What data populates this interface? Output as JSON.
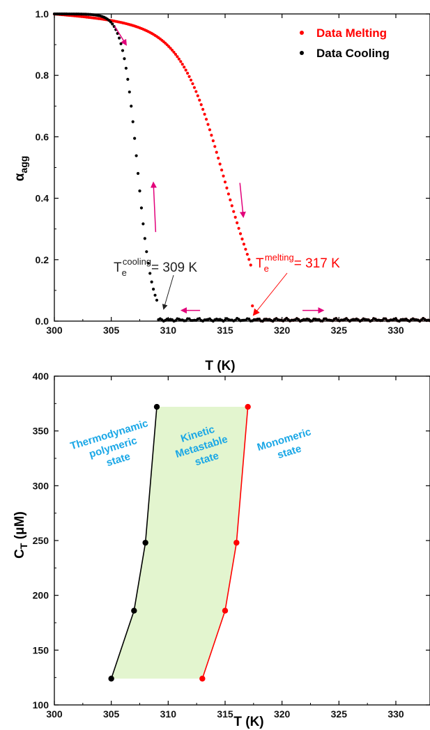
{
  "chart_data": [
    {
      "type": "scatter",
      "xlim": [
        300,
        333
      ],
      "ylim": [
        0,
        1.0
      ],
      "x_ticks": [
        "300",
        "305",
        "310",
        "315",
        "320",
        "325",
        "330"
      ],
      "y_ticks": [
        "0.0",
        "0.2",
        "0.4",
        "0.6",
        "0.8",
        "1.0"
      ],
      "xlabel": "T (K)",
      "ylabel": {
        "main": "α",
        "sub": "agg"
      },
      "legend_position": "top-right",
      "series": [
        {
          "name": "Data Melting",
          "color": "#ff0000",
          "model": "melting",
          "x_start": 300,
          "x_end": 333,
          "step": 0.15,
          "midpoint": 315,
          "width": 7.5,
          "onset": 317.4
        },
        {
          "name": "Data Cooling",
          "color": "#000000",
          "model": "cooling",
          "x_start": 300,
          "x_end": 333,
          "step": 0.15,
          "midpoint": 307.3,
          "width": 2.6,
          "onset": 309.1
        }
      ],
      "annotations": [
        {
          "base": "T",
          "sub": "e",
          "sup": "cooling",
          "value": "= 309 K",
          "color": "#222222",
          "points_to": [
            309.1,
            0.02
          ]
        },
        {
          "base": "T",
          "sub": "e",
          "sup": "melting",
          "value": "= 317 K",
          "color": "#ff0000",
          "points_to": [
            317.4,
            0.02
          ]
        }
      ],
      "arrows": [
        {
          "color": "#e2007a",
          "from": [
            305.3,
            0.96
          ],
          "to": [
            306.3,
            0.9
          ]
        },
        {
          "color": "#e2007a",
          "from": [
            316.3,
            0.45
          ],
          "to": [
            316.6,
            0.34
          ]
        },
        {
          "color": "#e2007a",
          "from": [
            308.9,
            0.29
          ],
          "to": [
            308.7,
            0.45
          ]
        },
        {
          "color": "#e2007a",
          "from": [
            312.8,
            0.035
          ],
          "to": [
            311.2,
            0.035
          ]
        },
        {
          "color": "#e2007a",
          "from": [
            321.8,
            0.035
          ],
          "to": [
            323.6,
            0.035
          ]
        }
      ]
    },
    {
      "type": "line",
      "xlim": [
        300,
        333
      ],
      "ylim": [
        100,
        400
      ],
      "x_ticks": [
        "300",
        "305",
        "310",
        "315",
        "320",
        "325",
        "330"
      ],
      "y_ticks": [
        "100",
        "150",
        "200",
        "250",
        "300",
        "350",
        "400"
      ],
      "xlabel": "T (K)",
      "ylabel": {
        "main": "C",
        "sub": "T",
        "unit": " (μM)"
      },
      "series": [
        {
          "color": "#000000",
          "points": [
            [
              305,
              124
            ],
            [
              307,
              186
            ],
            [
              308,
              248
            ],
            [
              309,
              372
            ]
          ]
        },
        {
          "color": "#ff0000",
          "points": [
            [
              313,
              124
            ],
            [
              315,
              186
            ],
            [
              316,
              248
            ],
            [
              317,
              372
            ]
          ]
        }
      ],
      "fill_color": "#e3f5cf",
      "region_labels": [
        {
          "lines": [
            "Thermodynamic",
            "polymeric",
            "state"
          ]
        },
        {
          "lines": [
            "Kinetic",
            "Metastable",
            "state"
          ]
        },
        {
          "lines": [
            "Monomeric",
            "state"
          ]
        }
      ]
    }
  ]
}
